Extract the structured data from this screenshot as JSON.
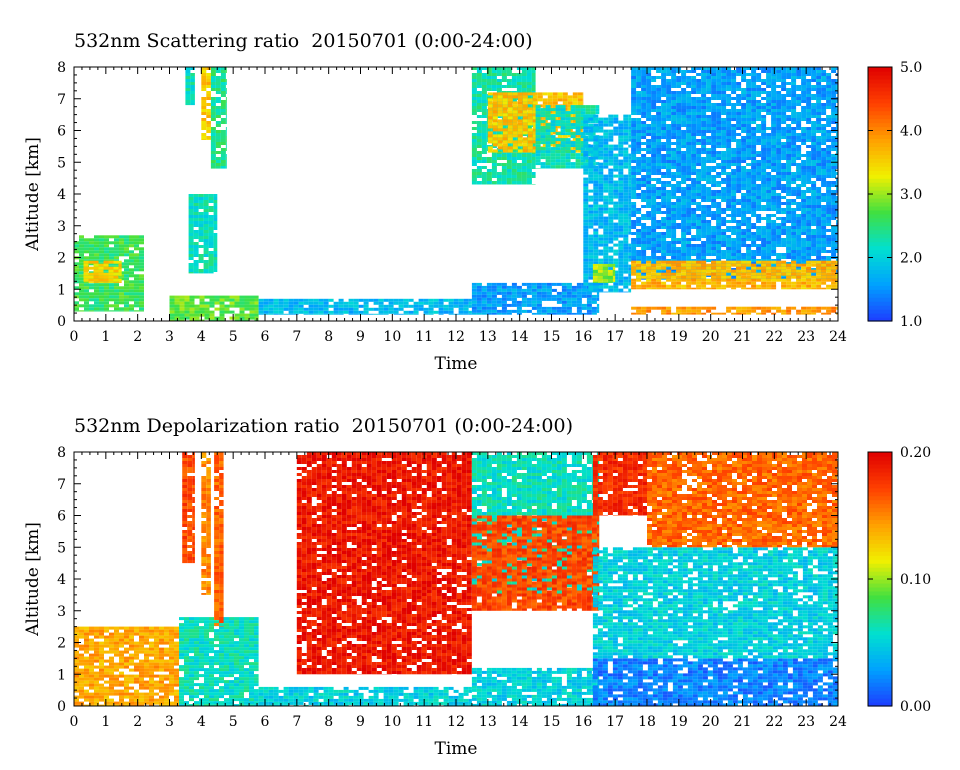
{
  "chart_data": [
    {
      "type": "heatmap",
      "title": "532nm Scattering ratio  20150701 (0:00-24:00)",
      "xlabel": "Time",
      "ylabel": "Altitude [km]",
      "xlim": [
        0,
        24
      ],
      "ylim": [
        0,
        8
      ],
      "x_ticks": [
        "0",
        "1",
        "2",
        "3",
        "4",
        "5",
        "6",
        "7",
        "8",
        "9",
        "10",
        "11",
        "12",
        "13",
        "14",
        "15",
        "16",
        "17",
        "18",
        "19",
        "20",
        "21",
        "22",
        "23",
        "24"
      ],
      "y_ticks": [
        "0",
        "1",
        "2",
        "3",
        "4",
        "5",
        "6",
        "7",
        "8"
      ],
      "colorbar": {
        "min": 1.0,
        "max": 5.0,
        "ticks": [
          1.0,
          2.0,
          3.0,
          4.0,
          5.0
        ],
        "tick_labels": [
          "1.0",
          "2.0",
          "3.0",
          "4.0",
          "5.0"
        ],
        "colors": [
          "#1e3cff",
          "#00a0ff",
          "#00e0d0",
          "#40e040",
          "#f0f000",
          "#ffa000",
          "#ff4000",
          "#e00000"
        ]
      },
      "features": [
        {
          "t0": 0.0,
          "t1": 2.2,
          "z0": 0.3,
          "z1": 2.7,
          "v": 2.6
        },
        {
          "t0": 0.3,
          "t1": 1.5,
          "z0": 1.2,
          "z1": 1.9,
          "v": 3.5
        },
        {
          "t0": 3.5,
          "t1": 3.8,
          "z0": 6.8,
          "z1": 8.0,
          "v": 2.2
        },
        {
          "t0": 4.0,
          "t1": 4.3,
          "z0": 5.7,
          "z1": 8.0,
          "v": 3.6
        },
        {
          "t0": 4.3,
          "t1": 4.8,
          "z0": 4.8,
          "z1": 8.0,
          "v": 2.4
        },
        {
          "t0": 3.6,
          "t1": 4.5,
          "z0": 1.5,
          "z1": 4.0,
          "v": 2.2
        },
        {
          "t0": 3.0,
          "t1": 5.8,
          "z0": 0.0,
          "z1": 0.8,
          "v": 2.8
        },
        {
          "t0": 5.8,
          "t1": 12.5,
          "z0": 0.2,
          "z1": 0.7,
          "v": 1.8
        },
        {
          "t0": 12.5,
          "t1": 16.5,
          "z0": 0.2,
          "z1": 1.2,
          "v": 1.6
        },
        {
          "t0": 12.5,
          "t1": 14.5,
          "z0": 4.3,
          "z1": 8.0,
          "v": 2.3
        },
        {
          "t0": 13.0,
          "t1": 16.0,
          "z0": 5.3,
          "z1": 7.2,
          "v": 3.6
        },
        {
          "t0": 14.5,
          "t1": 16.5,
          "z0": 4.8,
          "z1": 6.8,
          "v": 2.2
        },
        {
          "t0": 16.0,
          "t1": 17.5,
          "z0": 0.9,
          "z1": 6.5,
          "v": 1.8
        },
        {
          "t0": 16.3,
          "t1": 17.0,
          "z0": 1.2,
          "z1": 1.8,
          "v": 3.0
        },
        {
          "t0": 17.5,
          "t1": 24.0,
          "z0": 1.3,
          "z1": 8.0,
          "v": 1.6
        },
        {
          "t0": 17.5,
          "t1": 24.0,
          "z0": 1.0,
          "z1": 1.9,
          "v": 3.7
        },
        {
          "t0": 17.5,
          "t1": 24.0,
          "z0": 0.2,
          "z1": 0.45,
          "v": 3.9
        }
      ]
    },
    {
      "type": "heatmap",
      "title": "532nm Depolarization ratio  20150701 (0:00-24:00)",
      "xlabel": "Time",
      "ylabel": "Altitude [km]",
      "xlim": [
        0,
        24
      ],
      "ylim": [
        0,
        8
      ],
      "x_ticks": [
        "0",
        "1",
        "2",
        "3",
        "4",
        "5",
        "6",
        "7",
        "8",
        "9",
        "10",
        "11",
        "12",
        "13",
        "14",
        "15",
        "16",
        "17",
        "18",
        "19",
        "20",
        "21",
        "22",
        "23",
        "24"
      ],
      "y_ticks": [
        "0",
        "1",
        "2",
        "3",
        "4",
        "5",
        "6",
        "7",
        "8"
      ],
      "colorbar": {
        "min": 0.0,
        "max": 0.2,
        "ticks": [
          0.0,
          0.1,
          0.2
        ],
        "tick_labels": [
          "0.00",
          "0.10",
          "0.20"
        ],
        "colors": [
          "#1e3cff",
          "#00a0ff",
          "#00e0d0",
          "#40e040",
          "#f0f000",
          "#ffa000",
          "#ff4000",
          "#e00000"
        ]
      },
      "features": [
        {
          "t0": 0.0,
          "t1": 3.3,
          "z0": 0.0,
          "z1": 2.5,
          "v": 0.14
        },
        {
          "t0": 3.3,
          "t1": 5.8,
          "z0": 0.0,
          "z1": 2.8,
          "v": 0.06
        },
        {
          "t0": 3.4,
          "t1": 3.8,
          "z0": 4.5,
          "z1": 8.0,
          "v": 0.17
        },
        {
          "t0": 4.0,
          "t1": 4.3,
          "z0": 3.5,
          "z1": 8.0,
          "v": 0.15
        },
        {
          "t0": 4.4,
          "t1": 4.7,
          "z0": 2.5,
          "z1": 8.0,
          "v": 0.16
        },
        {
          "t0": 5.8,
          "t1": 12.5,
          "z0": 0.0,
          "z1": 0.6,
          "v": 0.05
        },
        {
          "t0": 7.0,
          "t1": 12.5,
          "z0": 1.0,
          "z1": 8.0,
          "v": 0.19
        },
        {
          "t0": 12.5,
          "t1": 16.5,
          "z0": 0.0,
          "z1": 1.2,
          "v": 0.05
        },
        {
          "t0": 12.5,
          "t1": 16.5,
          "z0": 3.5,
          "z1": 8.0,
          "v": 0.06
        },
        {
          "t0": 12.5,
          "t1": 16.5,
          "z0": 3.0,
          "z1": 6.0,
          "v": 0.17
        },
        {
          "t0": 16.3,
          "t1": 18.0,
          "z0": 6.0,
          "z1": 8.0,
          "v": 0.18
        },
        {
          "t0": 16.3,
          "t1": 24.0,
          "z0": 0.0,
          "z1": 1.5,
          "v": 0.02
        },
        {
          "t0": 16.3,
          "t1": 24.0,
          "z0": 1.5,
          "z1": 5.0,
          "v": 0.05
        },
        {
          "t0": 18.0,
          "t1": 24.0,
          "z0": 5.0,
          "z1": 8.0,
          "v": 0.16
        }
      ]
    }
  ]
}
